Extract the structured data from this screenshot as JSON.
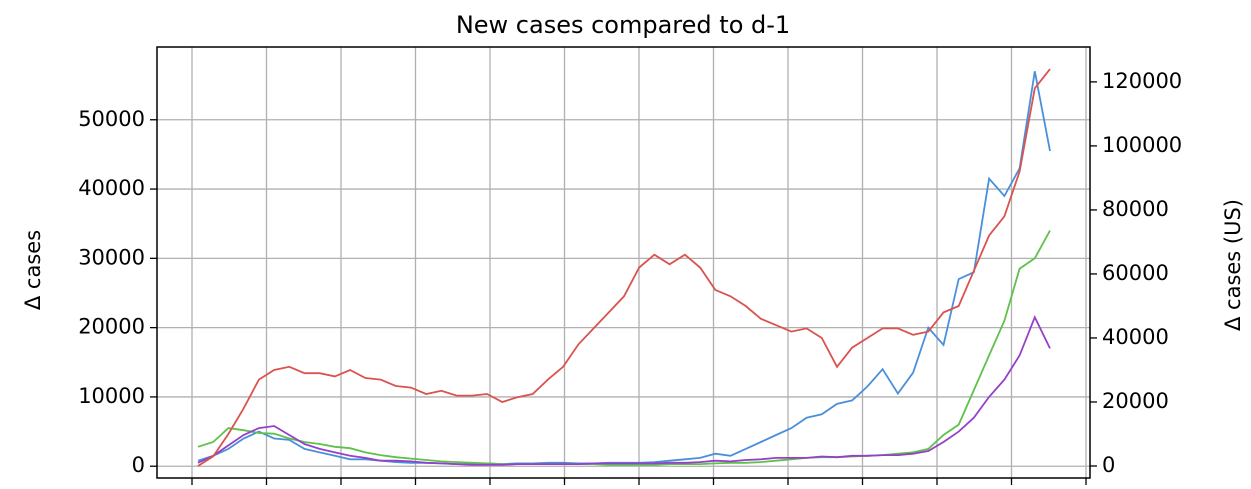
{
  "chart_data": {
    "type": "line",
    "title": "New cases compared to d-1",
    "ylabel": "Δ cases",
    "y2label": "Δ cases (US)",
    "ylim": [
      -1700,
      60500
    ],
    "yticks": [
      0,
      10000,
      20000,
      30000,
      40000,
      50000
    ],
    "y2lim": [
      -3750,
      130900
    ],
    "y2ticks": [
      0,
      20000,
      40000,
      60000,
      80000,
      100000,
      120000
    ],
    "y2color": "#d9534f",
    "grid": true,
    "series": [
      {
        "color": "#4a8fdb",
        "values": [
          800,
          1500,
          2500,
          4000,
          5000,
          4000,
          3800,
          2500,
          2000,
          1500,
          1000,
          1000,
          800,
          600,
          500,
          500,
          400,
          300,
          300,
          400,
          300,
          400,
          400,
          500,
          500,
          400,
          400,
          500,
          500,
          500,
          600,
          800,
          1000,
          1200,
          1800,
          1500,
          2500,
          3500,
          4500,
          5500,
          7000,
          7500,
          9000,
          9500,
          11500,
          14000,
          10500,
          13500,
          20000,
          17500,
          27000,
          28000,
          41500,
          39000,
          43000,
          57000,
          45500
        ]
      },
      {
        "color": "#5dc14a",
        "values": [
          2800,
          3500,
          5500,
          5200,
          4800,
          4700,
          4000,
          3500,
          3200,
          2800,
          2600,
          2000,
          1600,
          1300,
          1100,
          900,
          700,
          600,
          500,
          400,
          300,
          300,
          300,
          300,
          300,
          300,
          300,
          200,
          200,
          200,
          200,
          300,
          300,
          300,
          400,
          500,
          500,
          600,
          800,
          1000,
          1200,
          1300,
          1300,
          1400,
          1500,
          1600,
          1800,
          2000,
          2500,
          4500,
          6000,
          11000,
          16000,
          21000,
          28500,
          30000,
          34000
        ]
      },
      {
        "color": "#9540c8",
        "values": [
          500,
          1500,
          3000,
          4500,
          5500,
          5800,
          4500,
          3200,
          2500,
          2000,
          1500,
          1200,
          800,
          800,
          700,
          500,
          400,
          300,
          200,
          200,
          200,
          300,
          300,
          300,
          300,
          300,
          400,
          400,
          400,
          400,
          400,
          500,
          500,
          600,
          800,
          700,
          900,
          1000,
          1200,
          1200,
          1200,
          1400,
          1300,
          1500,
          1500,
          1600,
          1600,
          1800,
          2200,
          3500,
          5000,
          7000,
          10000,
          12500,
          16000,
          21500,
          17000
        ]
      },
      {
        "color": "#d9534f",
        "axis": "y2",
        "values": [
          0,
          3000,
          10000,
          18000,
          27000,
          30000,
          31000,
          29000,
          29000,
          28000,
          30000,
          27500,
          27000,
          25000,
          24500,
          22500,
          23500,
          22000,
          22000,
          22500,
          20000,
          21500,
          22500,
          27000,
          31000,
          38000,
          43000,
          48000,
          53000,
          62000,
          66000,
          63000,
          66000,
          62000,
          55000,
          53000,
          50000,
          46000,
          44000,
          42000,
          43000,
          40000,
          31000,
          37000,
          40000,
          43000,
          43000,
          41000,
          42000,
          48000,
          50000,
          61000,
          72000,
          78000,
          92000,
          118000,
          124000
        ]
      }
    ]
  }
}
